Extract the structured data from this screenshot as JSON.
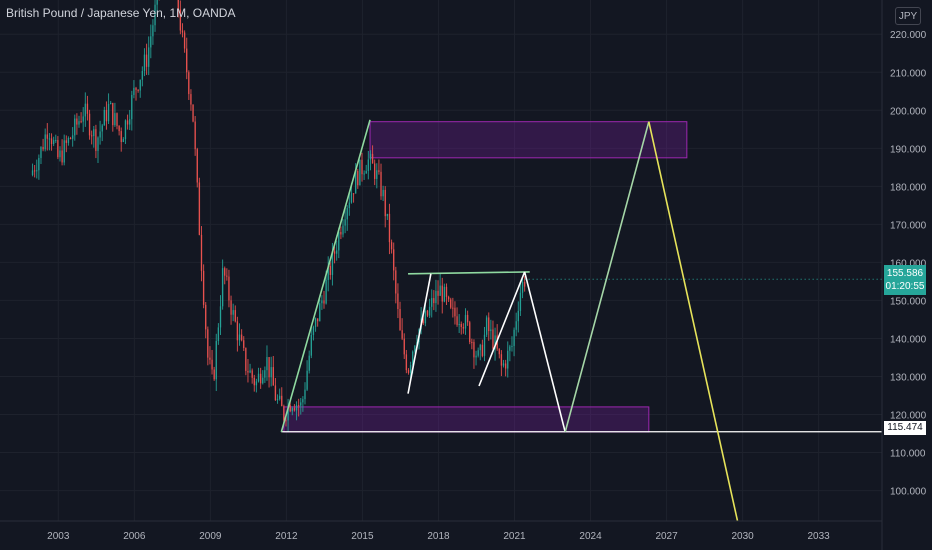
{
  "header": {
    "title": "British Pound / Japanese Yen, 1M, OANDA",
    "currency_button": "JPY"
  },
  "price_scale": {
    "current_price": "155.586",
    "countdown": "01:20:55",
    "level_label": "115.474"
  },
  "chart_data": {
    "type": "candlestick",
    "title": "British Pound / Japanese Yen, 1M, OANDA",
    "xlabel": "",
    "ylabel": "",
    "x_ticks": [
      "2003",
      "2006",
      "2009",
      "2012",
      "2015",
      "2018",
      "2021",
      "2024",
      "2027",
      "2030",
      "2033"
    ],
    "y_ticks": [
      "100.000",
      "110.000",
      "120.000",
      "130.000",
      "140.000",
      "150.000",
      "160.000",
      "170.000",
      "180.000",
      "190.000",
      "200.000",
      "210.000",
      "220.000"
    ],
    "ylim": [
      92,
      229
    ],
    "xlim": [
      2000.7,
      2035.5
    ],
    "grid": true,
    "colors": {
      "up": "#26a69a",
      "down": "#ef5350",
      "background": "#131722"
    },
    "price_path": [
      [
        2001.9,
        183
      ],
      [
        2002.3,
        189
      ],
      [
        2002.6,
        196
      ],
      [
        2003.0,
        187
      ],
      [
        2003.5,
        193
      ],
      [
        2004.0,
        200
      ],
      [
        2004.5,
        192
      ],
      [
        2005.0,
        201
      ],
      [
        2005.5,
        193
      ],
      [
        2006.0,
        205
      ],
      [
        2006.5,
        214
      ],
      [
        2007.0,
        233
      ],
      [
        2007.5,
        240
      ],
      [
        2007.9,
        218
      ],
      [
        2008.3,
        200
      ],
      [
        2008.6,
        165
      ],
      [
        2008.9,
        135
      ],
      [
        2009.1,
        128
      ],
      [
        2009.5,
        158
      ],
      [
        2009.9,
        146
      ],
      [
        2010.4,
        133
      ],
      [
        2010.8,
        128
      ],
      [
        2011.2,
        135
      ],
      [
        2011.6,
        124
      ],
      [
        2011.9,
        120
      ],
      [
        2012.2,
        124
      ],
      [
        2012.6,
        122
      ],
      [
        2013.0,
        140
      ],
      [
        2013.4,
        150
      ],
      [
        2013.8,
        160
      ],
      [
        2014.3,
        174
      ],
      [
        2014.8,
        183
      ],
      [
        2015.2,
        187
      ],
      [
        2015.5,
        184
      ],
      [
        2015.8,
        178
      ],
      [
        2016.1,
        165
      ],
      [
        2016.5,
        140
      ],
      [
        2016.8,
        132
      ],
      [
        2017.1,
        141
      ],
      [
        2017.5,
        145
      ],
      [
        2017.8,
        150
      ],
      [
        2018.1,
        153
      ],
      [
        2018.5,
        146
      ],
      [
        2018.9,
        146
      ],
      [
        2019.2,
        142
      ],
      [
        2019.6,
        134
      ],
      [
        2019.9,
        143
      ],
      [
        2020.2,
        139
      ],
      [
        2020.5,
        132
      ],
      [
        2020.9,
        138
      ],
      [
        2021.2,
        152
      ],
      [
        2021.4,
        155.6
      ]
    ],
    "zones": [
      {
        "x0": 2015.3,
        "x1": 2027.8,
        "y0": 187.5,
        "y1": 197
      },
      {
        "x0": 2011.9,
        "x1": 2026.3,
        "y0": 115.4,
        "y1": 122
      }
    ],
    "drawings": [
      {
        "color": "#8fd9a0",
        "points": [
          [
            2011.8,
            115.4
          ],
          [
            2015.3,
            197.5
          ]
        ]
      },
      {
        "color": "#8fd9a0",
        "points": [
          [
            2016.8,
            157
          ],
          [
            2021.6,
            157.5
          ]
        ]
      },
      {
        "color": "#ffffff",
        "points": [
          [
            2016.8,
            125.5
          ],
          [
            2017.7,
            157
          ]
        ]
      },
      {
        "color": "#ffffff",
        "points": [
          [
            2019.6,
            127.5
          ],
          [
            2021.4,
            157.5
          ]
        ]
      },
      {
        "color": "#ffffff",
        "points": [
          [
            2021.4,
            157.5
          ],
          [
            2023.0,
            115.4
          ]
        ]
      },
      {
        "color": "#a5d6a7",
        "points": [
          [
            2023.0,
            115.4
          ],
          [
            2026.3,
            197
          ]
        ]
      },
      {
        "color": "#e6e35a",
        "points": [
          [
            2026.3,
            197
          ],
          [
            2029.8,
            92
          ]
        ]
      }
    ],
    "horizontal_line": {
      "y": 115.474,
      "color": "#ffffff"
    },
    "current_price": 155.586
  }
}
